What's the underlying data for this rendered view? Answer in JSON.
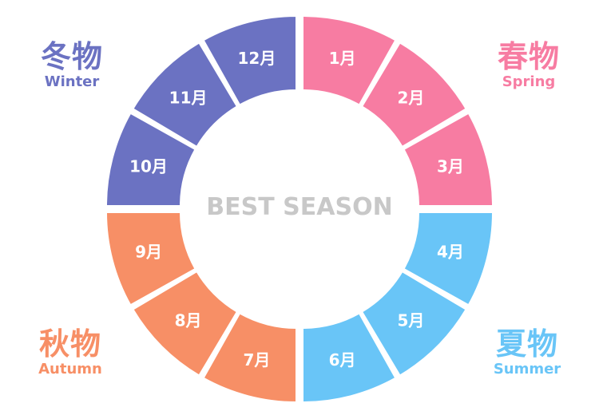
{
  "center_title": "BEST SEASON",
  "colors": {
    "winter": "#6b72c2",
    "spring": "#f77ca2",
    "summer": "#69c5f7",
    "autumn": "#f78f66",
    "center_text": "#c8c8c8"
  },
  "seasons": [
    {
      "key": "spring",
      "jp": "春物",
      "en": "Spring",
      "months": [
        "1月",
        "2月",
        "3月"
      ]
    },
    {
      "key": "summer",
      "jp": "夏物",
      "en": "Summer",
      "months": [
        "4月",
        "5月",
        "6月"
      ]
    },
    {
      "key": "autumn",
      "jp": "秋物",
      "en": "Autumn",
      "months": [
        "7月",
        "8月",
        "9月"
      ]
    },
    {
      "key": "winter",
      "jp": "冬物",
      "en": "Winter",
      "months": [
        "10月",
        "11月",
        "12月"
      ]
    }
  ]
}
